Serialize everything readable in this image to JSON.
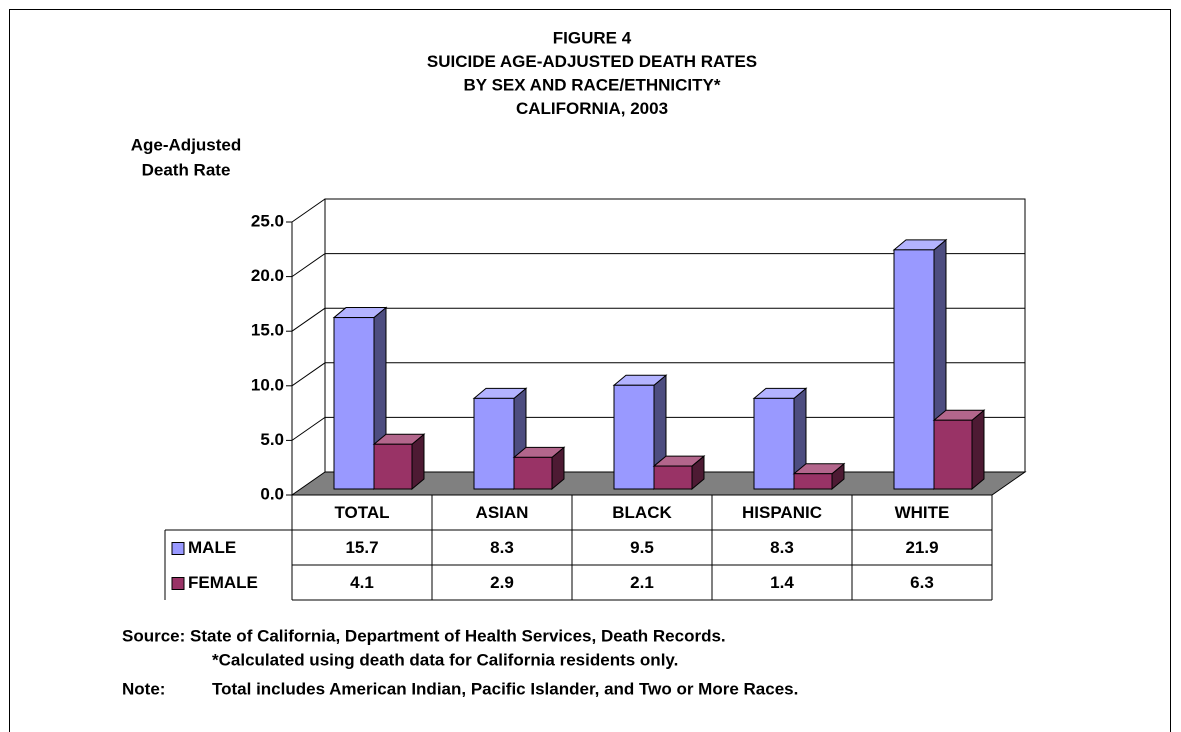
{
  "chart_data": {
    "type": "bar",
    "title": [
      "FIGURE 4",
      "SUICIDE AGE-ADJUSTED DEATH RATES",
      "BY SEX AND RACE/ETHNICITY*",
      "CALIFORNIA, 2003"
    ],
    "ylabel": [
      "Age-Adjusted",
      "Death Rate"
    ],
    "categories": [
      "TOTAL",
      "ASIAN",
      "BLACK",
      "HISPANIC",
      "WHITE"
    ],
    "series": [
      {
        "name": "MALE",
        "color": "#9999ff",
        "values": [
          15.7,
          8.3,
          9.5,
          8.3,
          21.9
        ]
      },
      {
        "name": "FEMALE",
        "color": "#993366",
        "values": [
          4.1,
          2.9,
          2.1,
          1.4,
          6.3
        ]
      }
    ],
    "ylim": [
      0,
      25
    ],
    "yticks": [
      {
        "value": 0,
        "label": "0.0"
      },
      {
        "value": 5,
        "label": "5.0"
      },
      {
        "value": 10,
        "label": "10.0"
      },
      {
        "value": 15,
        "label": "15.0"
      },
      {
        "value": 20,
        "label": "20.0"
      },
      {
        "value": 25,
        "label": "25.0"
      }
    ],
    "grid": true,
    "notes": [
      "Source: State of California, Department of Health Services, Death Records.",
      "*Calculated using death data for California residents only.",
      "Note:",
      "Total includes American Indian, Pacific Islander, and Two or More Races."
    ]
  }
}
